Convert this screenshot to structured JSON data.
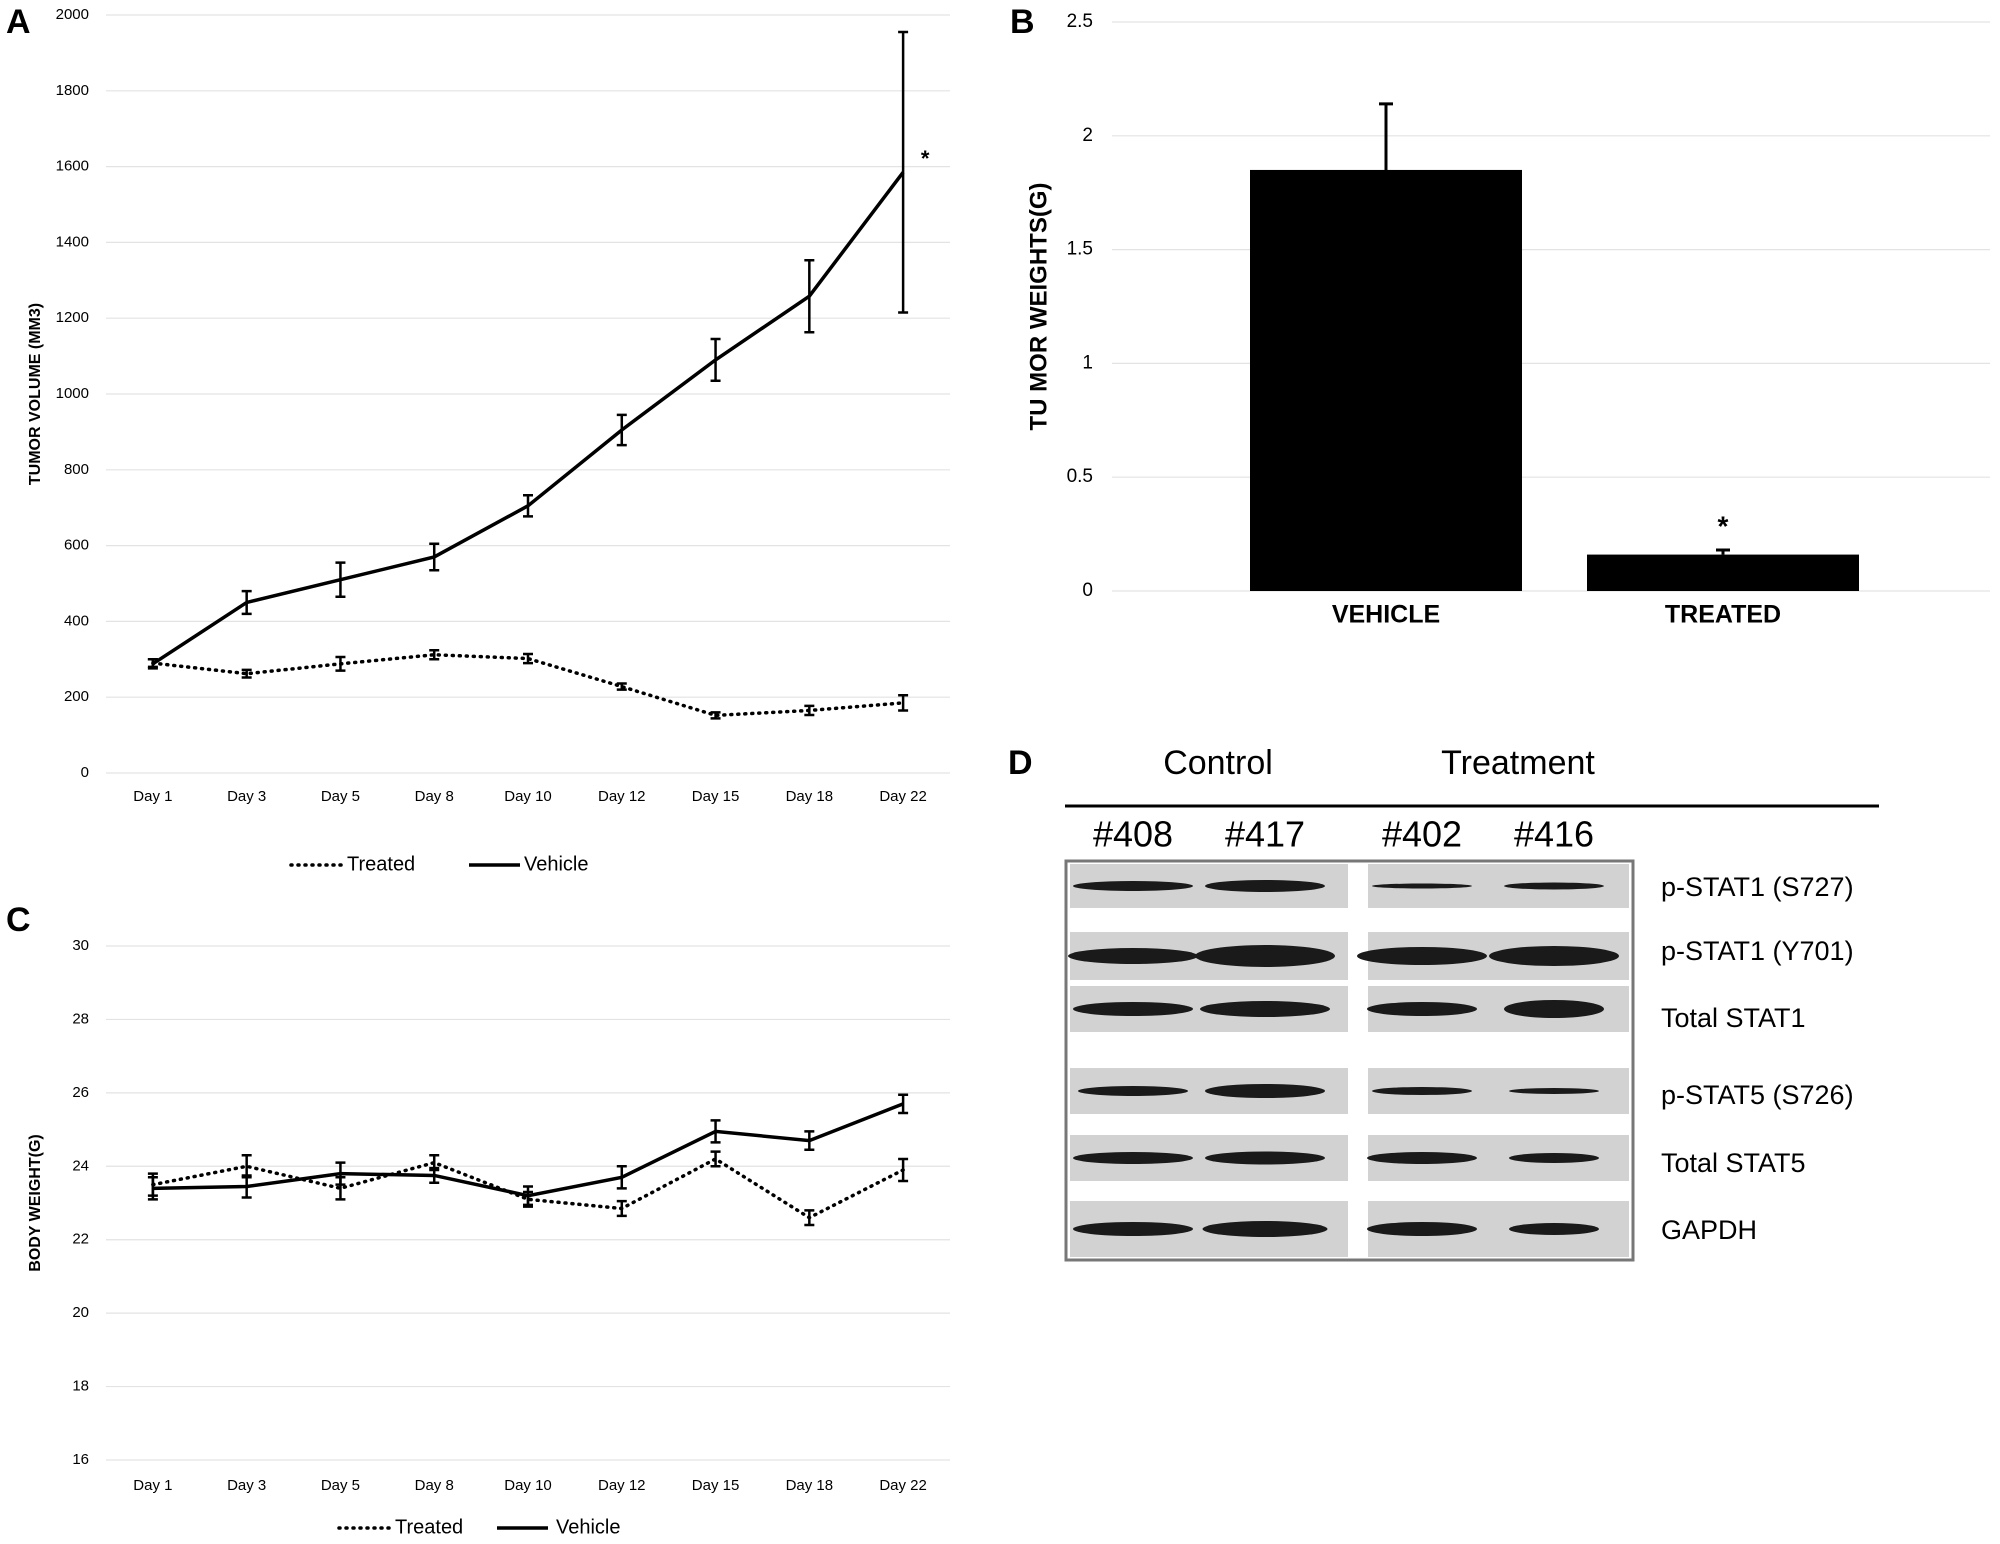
{
  "chart_data": [
    {
      "type": "line",
      "panel": "A",
      "y_label": "TUMOR VOLUME (MM3)",
      "categories": [
        "Day 1",
        "Day 3",
        "Day 5",
        "Day 8",
        "Day 10",
        "Day 12",
        "Day 15",
        "Day 18",
        "Day 22"
      ],
      "series": [
        {
          "name": "Treated",
          "color": "#000000",
          "style": "dotted",
          "values": [
            290,
            262,
            288,
            312,
            302,
            228,
            152,
            165,
            185
          ],
          "errors": [
            10,
            10,
            18,
            12,
            12,
            8,
            8,
            12,
            20
          ]
        },
        {
          "name": "Vehicle",
          "color": "#000000",
          "style": "solid",
          "values": [
            288,
            450,
            510,
            570,
            705,
            905,
            1090,
            1258,
            1585
          ],
          "errors": [
            12,
            30,
            45,
            35,
            28,
            40,
            55,
            95,
            370
          ]
        }
      ],
      "ylim": [
        0,
        2000
      ],
      "yticks": [
        0,
        200,
        400,
        600,
        800,
        1000,
        1200,
        1400,
        1600,
        1800,
        2000
      ],
      "grid": true,
      "legend": "bottom",
      "annotation": "*"
    },
    {
      "type": "bar",
      "panel": "B",
      "y_label": "TU MOR WEIGHTS(G)",
      "categories": [
        "VEHICLE",
        "TREATED"
      ],
      "values": [
        1.85,
        0.16
      ],
      "errors": [
        0.29,
        0.02
      ],
      "color": "#000000",
      "ylim": [
        0,
        2.5
      ],
      "yticks": [
        0,
        0.5,
        1,
        1.5,
        2,
        2.5
      ],
      "grid": true,
      "annotation": "*"
    },
    {
      "type": "line",
      "panel": "C",
      "y_label": "BODY WEIGHT(G)",
      "categories": [
        "Day 1",
        "Day 3",
        "Day 5",
        "Day 8",
        "Day 10",
        "Day 12",
        "Day 15",
        "Day 18",
        "Day 22"
      ],
      "series": [
        {
          "name": "Treated",
          "color": "#000000",
          "style": "dotted",
          "values": [
            23.5,
            24.0,
            23.4,
            24.1,
            23.1,
            22.85,
            24.2,
            22.6,
            23.9
          ],
          "errors": [
            0.3,
            0.3,
            0.3,
            0.2,
            0.2,
            0.2,
            0.2,
            0.2,
            0.3
          ]
        },
        {
          "name": "Vehicle",
          "color": "#000000",
          "style": "solid",
          "values": [
            23.4,
            23.45,
            23.8,
            23.75,
            23.2,
            23.7,
            24.95,
            24.7,
            25.7
          ],
          "errors": [
            0.3,
            0.3,
            0.3,
            0.2,
            0.25,
            0.3,
            0.3,
            0.25,
            0.25
          ]
        }
      ],
      "ylim": [
        16,
        30
      ],
      "yticks": [
        16,
        18,
        20,
        22,
        24,
        26,
        28,
        30
      ],
      "grid": true,
      "legend": "bottom"
    }
  ],
  "blot": {
    "panel": "D",
    "groups": [
      "Control",
      "Treatment"
    ],
    "samples": [
      "#408",
      "#417",
      "#402",
      "#416"
    ],
    "rows": [
      "p-STAT1 (S727)",
      "p-STAT1 (Y701)",
      "Total STAT1",
      "p-STAT5 (S726)",
      "Total STAT5",
      "GAPDH"
    ]
  }
}
